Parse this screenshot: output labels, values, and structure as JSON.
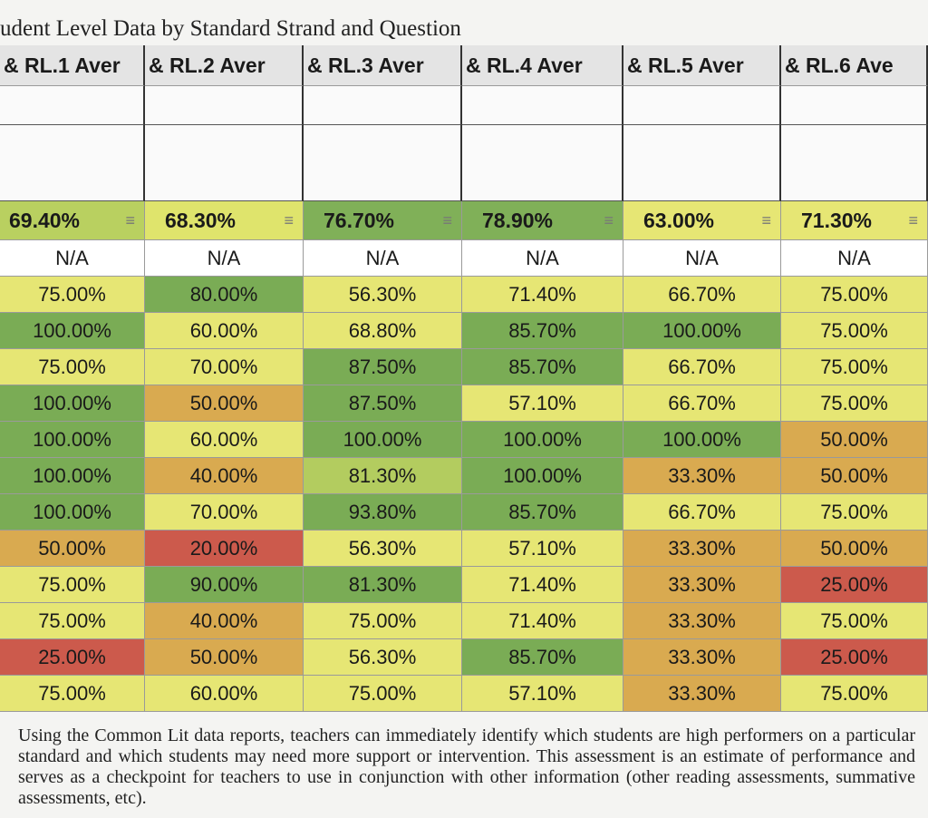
{
  "header": {
    "title": "udent Level Data by Standard Strand and Question"
  },
  "table": {
    "columns": [
      "& RL.1 Aver",
      "& RL.2 Aver",
      "& RL.3 Aver",
      "& RL.4 Aver",
      "& RL.5 Aver",
      "& RL.6 Ave"
    ],
    "averages": [
      "69.40%",
      "68.30%",
      "76.70%",
      "78.90%",
      "63.00%",
      "71.30%"
    ],
    "average_colors": [
      "#b9d060",
      "#dfe46c",
      "#80b058",
      "#80b058",
      "#e6e674",
      "#e6e674"
    ],
    "rows": [
      [
        "N/A",
        "N/A",
        "N/A",
        "N/A",
        "N/A",
        "N/A"
      ],
      [
        "75.00%",
        "80.00%",
        "56.30%",
        "71.40%",
        "66.70%",
        "75.00%"
      ],
      [
        "100.00%",
        "60.00%",
        "68.80%",
        "85.70%",
        "100.00%",
        "75.00%"
      ],
      [
        "75.00%",
        "70.00%",
        "87.50%",
        "85.70%",
        "66.70%",
        "75.00%"
      ],
      [
        "100.00%",
        "50.00%",
        "87.50%",
        "57.10%",
        "66.70%",
        "75.00%"
      ],
      [
        "100.00%",
        "60.00%",
        "100.00%",
        "100.00%",
        "100.00%",
        "50.00%"
      ],
      [
        "100.00%",
        "40.00%",
        "81.30%",
        "100.00%",
        "33.30%",
        "50.00%"
      ],
      [
        "100.00%",
        "70.00%",
        "93.80%",
        "85.70%",
        "66.70%",
        "75.00%"
      ],
      [
        "50.00%",
        "20.00%",
        "56.30%",
        "57.10%",
        "33.30%",
        "50.00%"
      ],
      [
        "75.00%",
        "90.00%",
        "81.30%",
        "71.40%",
        "33.30%",
        "25.00%"
      ],
      [
        "75.00%",
        "40.00%",
        "75.00%",
        "71.40%",
        "33.30%",
        "75.00%"
      ],
      [
        "25.00%",
        "50.00%",
        "56.30%",
        "85.70%",
        "33.30%",
        "25.00%"
      ],
      [
        "75.00%",
        "60.00%",
        "75.00%",
        "57.10%",
        "33.30%",
        "75.00%"
      ]
    ],
    "row_colors": [
      [
        "#ffffff",
        "#ffffff",
        "#ffffff",
        "#ffffff",
        "#ffffff",
        "#ffffff"
      ],
      [
        "#e6e674",
        "#7aac55",
        "#e6e674",
        "#e6e674",
        "#e6e674",
        "#e6e674"
      ],
      [
        "#7aac55",
        "#e6e674",
        "#e6e674",
        "#7aac55",
        "#7aac55",
        "#e6e674"
      ],
      [
        "#e6e674",
        "#e6e674",
        "#7aac55",
        "#7aac55",
        "#e6e674",
        "#e6e674"
      ],
      [
        "#7aac55",
        "#d9aa50",
        "#7aac55",
        "#e6e674",
        "#e6e674",
        "#e6e674"
      ],
      [
        "#7aac55",
        "#e6e674",
        "#7aac55",
        "#7aac55",
        "#7aac55",
        "#d9aa50"
      ],
      [
        "#7aac55",
        "#d9aa50",
        "#b3cc5f",
        "#7aac55",
        "#d9aa50",
        "#d9aa50"
      ],
      [
        "#7aac55",
        "#e6e674",
        "#7aac55",
        "#7aac55",
        "#e6e674",
        "#e6e674"
      ],
      [
        "#d9aa50",
        "#cc5a4c",
        "#e6e674",
        "#e6e674",
        "#d9aa50",
        "#d9aa50"
      ],
      [
        "#e6e674",
        "#7aac55",
        "#7aac55",
        "#e6e674",
        "#d9aa50",
        "#cc5a4c"
      ],
      [
        "#e6e674",
        "#d9aa50",
        "#e6e674",
        "#e6e674",
        "#d9aa50",
        "#e6e674"
      ],
      [
        "#cc5a4c",
        "#d9aa50",
        "#e6e674",
        "#7aac55",
        "#d9aa50",
        "#cc5a4c"
      ],
      [
        "#e6e674",
        "#e6e674",
        "#e6e674",
        "#e6e674",
        "#d9aa50",
        "#e6e674"
      ]
    ]
  },
  "paragraph": "Using the Common Lit data reports, teachers can immediately identify which students are high performers on a particular standard and which students may need more support or intervention. This assessment is an estimate of performance and serves as a checkpoint for teachers to use in conjunction with other information (other reading assessments, summative assessments, etc)."
}
